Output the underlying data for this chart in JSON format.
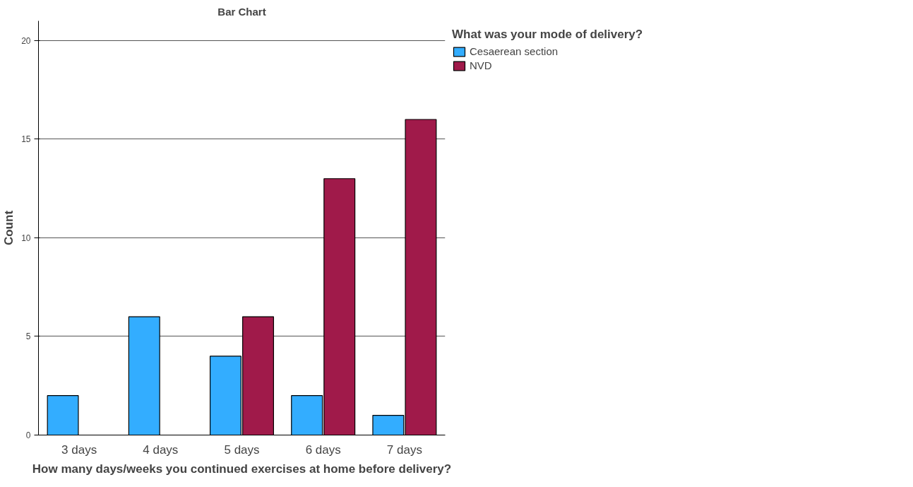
{
  "chart_data": {
    "type": "bar",
    "title": "Bar Chart",
    "xlabel": "How many days/weeks you continued exercises at home before delivery?",
    "ylabel": "Count",
    "legend_title": "What was your mode of delivery?",
    "categories": [
      "3 days",
      "4 days",
      "5 days",
      "6 days",
      "7 days"
    ],
    "series": [
      {
        "name": "Cesaerean section",
        "color": "#33adff",
        "values": [
          2,
          6,
          4,
          2,
          1
        ]
      },
      {
        "name": "NVD",
        "color": "#a01a4a",
        "values": [
          null,
          null,
          6,
          13,
          16
        ]
      }
    ],
    "ylim": [
      0,
      21
    ],
    "yticks": [
      0,
      5,
      10,
      15,
      20
    ],
    "grid": "y",
    "legend": "top right"
  }
}
